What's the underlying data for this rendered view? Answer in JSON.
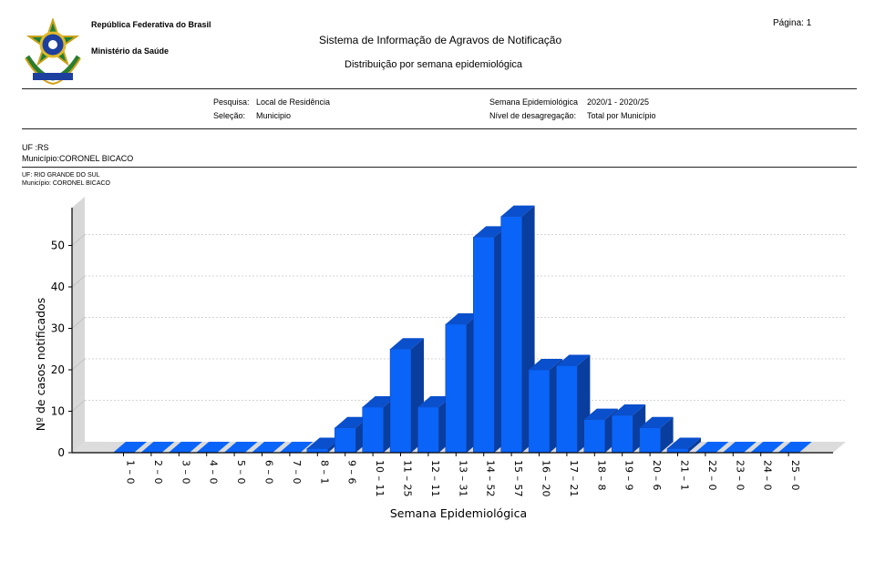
{
  "header": {
    "org_line1": "República Federativa do Brasil",
    "org_line2": "Ministério da Saúde",
    "system_title": "Sistema  de Informação de Agravos de Notificação",
    "report_title": "Distribuição por semana epidemiológica",
    "page_label": "Página: 1"
  },
  "filters": {
    "pesquisa_label": "Pesquisa:",
    "pesquisa_value": "Local de Residência",
    "selecao_label": "Seleção:",
    "selecao_value": "Municipio",
    "semana_label": "Semana Epidemiológica",
    "semana_value": "2020/1 - 2020/25",
    "nivel_label": "Nível de desagregação:",
    "nivel_value": "Total por Município"
  },
  "location": {
    "uf_line": "UF :RS",
    "municipio_line": "Município:CORONEL BICACO",
    "uf_small": "UF: RIO GRANDE DO SUL",
    "municipio_small": "Município: CORONEL BICACO"
  },
  "colors": {
    "bar_face": "#0a64f8",
    "bar_top": "#0a4fcc",
    "bar_side": "#0a3e9e"
  },
  "chart_data": {
    "type": "bar",
    "title": "",
    "xlabel": "Semana Epidemiológica",
    "ylabel": "Nº de casos notificados",
    "categories": [
      "1 – 0",
      "2 – 0",
      "3 – 0",
      "4 – 0",
      "5 – 0",
      "6 – 0",
      "7 – 0",
      "8 – 1",
      "9 – 6",
      "10 – 11",
      "11 – 25",
      "12 – 11",
      "13 – 31",
      "14 – 52",
      "15 – 57",
      "16 – 20",
      "17 – 21",
      "18 – 8",
      "19 – 9",
      "20 – 6",
      "21 – 1",
      "22 – 0",
      "23 – 0",
      "24 – 0",
      "25 – 0"
    ],
    "values": [
      0,
      0,
      0,
      0,
      0,
      0,
      0,
      1,
      6,
      11,
      25,
      11,
      31,
      52,
      57,
      20,
      21,
      8,
      9,
      6,
      1,
      0,
      0,
      0,
      0
    ],
    "yticks": [
      0,
      10,
      20,
      30,
      40,
      50
    ],
    "ylim": [
      0,
      60
    ],
    "grid": true
  }
}
